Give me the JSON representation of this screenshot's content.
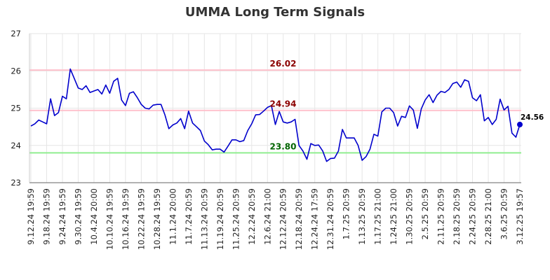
{
  "chart_data": {
    "type": "line",
    "title": "UMMA Long Term Signals",
    "ylim": [
      23,
      27
    ],
    "yticks": [
      "23",
      "24",
      "25",
      "26",
      "27"
    ],
    "grid": true,
    "xtick_labels": [
      "9.12.24 19:59",
      "9.18.24 19:59",
      "9.24.24 19:59",
      "9.30.24 19:59",
      "10.4.24 20:00",
      "10.10.24 19:59",
      "10.16.24 19:59",
      "10.22.24 19:59",
      "10.28.24 19:59",
      "11.1.24 20:00",
      "11.7.24 20:59",
      "11.13.24 20:59",
      "11.19.24 20:59",
      "11.25.24 20:59",
      "12.2.24 20:59",
      "12.6.24 21:00",
      "12.12.24 20:59",
      "12.18.24 20:59",
      "12.24.24 17:59",
      "12.31.24 20:59",
      "1.7.25 20:59",
      "1.13.25 20:59",
      "1.17.25 21:00",
      "1.24.25 21:00",
      "1.30.25 20:59",
      "2.5.25 20:59",
      "2.11.25 20:59",
      "2.18.25 20:59",
      "2.24.25 20:59",
      "2.28.25 21:00",
      "3.6.25 20:59",
      "3.12.25 19:57"
    ],
    "reference_lines": [
      {
        "value": 26.02,
        "label": "26.02",
        "color": "#ffc0cb",
        "label_color": "#8b0000"
      },
      {
        "value": 24.94,
        "label": "24.94",
        "color": "#ffc0cb",
        "label_color": "#8b0000"
      },
      {
        "value": 23.8,
        "label": "23.80",
        "color": "#90ee90",
        "label_color": "#006400"
      }
    ],
    "series": [
      {
        "color": "#0000cc",
        "values": [
          24.52,
          24.58,
          24.68,
          24.63,
          24.58,
          25.25,
          24.8,
          24.88,
          25.32,
          25.25,
          26.05,
          25.8,
          25.54,
          25.5,
          25.6,
          25.42,
          25.46,
          25.5,
          25.38,
          25.62,
          25.4,
          25.72,
          25.8,
          25.22,
          25.07,
          25.4,
          25.44,
          25.28,
          25.1,
          25.0,
          24.98,
          25.08,
          25.1,
          25.1,
          24.82,
          24.45,
          24.55,
          24.6,
          24.72,
          24.45,
          24.92,
          24.6,
          24.5,
          24.4,
          24.12,
          24.02,
          23.88,
          23.9,
          23.9,
          23.82,
          23.98,
          24.15,
          24.15,
          24.1,
          24.13,
          24.4,
          24.58,
          24.82,
          24.83,
          24.92,
          25.02,
          25.07,
          24.56,
          24.91,
          24.63,
          24.6,
          24.63,
          24.7,
          24.0,
          23.85,
          23.63,
          24.05,
          24.0,
          24.01,
          23.85,
          23.57,
          23.65,
          23.66,
          23.85,
          24.43,
          24.2,
          24.2,
          24.2,
          24.0,
          23.6,
          23.7,
          23.9,
          24.3,
          24.25,
          24.9,
          25.0,
          25.0,
          24.88,
          24.52,
          24.78,
          24.75,
          25.06,
          24.95,
          24.46,
          24.98,
          25.22,
          25.36,
          25.15,
          25.35,
          25.45,
          25.42,
          25.5,
          25.66,
          25.7,
          25.56,
          25.76,
          25.72,
          25.28,
          25.2,
          25.36,
          24.66,
          24.75,
          24.56,
          24.7,
          25.24,
          24.95,
          25.05,
          24.33,
          24.22,
          24.56
        ]
      }
    ],
    "last_value": {
      "label": "24.56",
      "value": 24.56
    }
  }
}
